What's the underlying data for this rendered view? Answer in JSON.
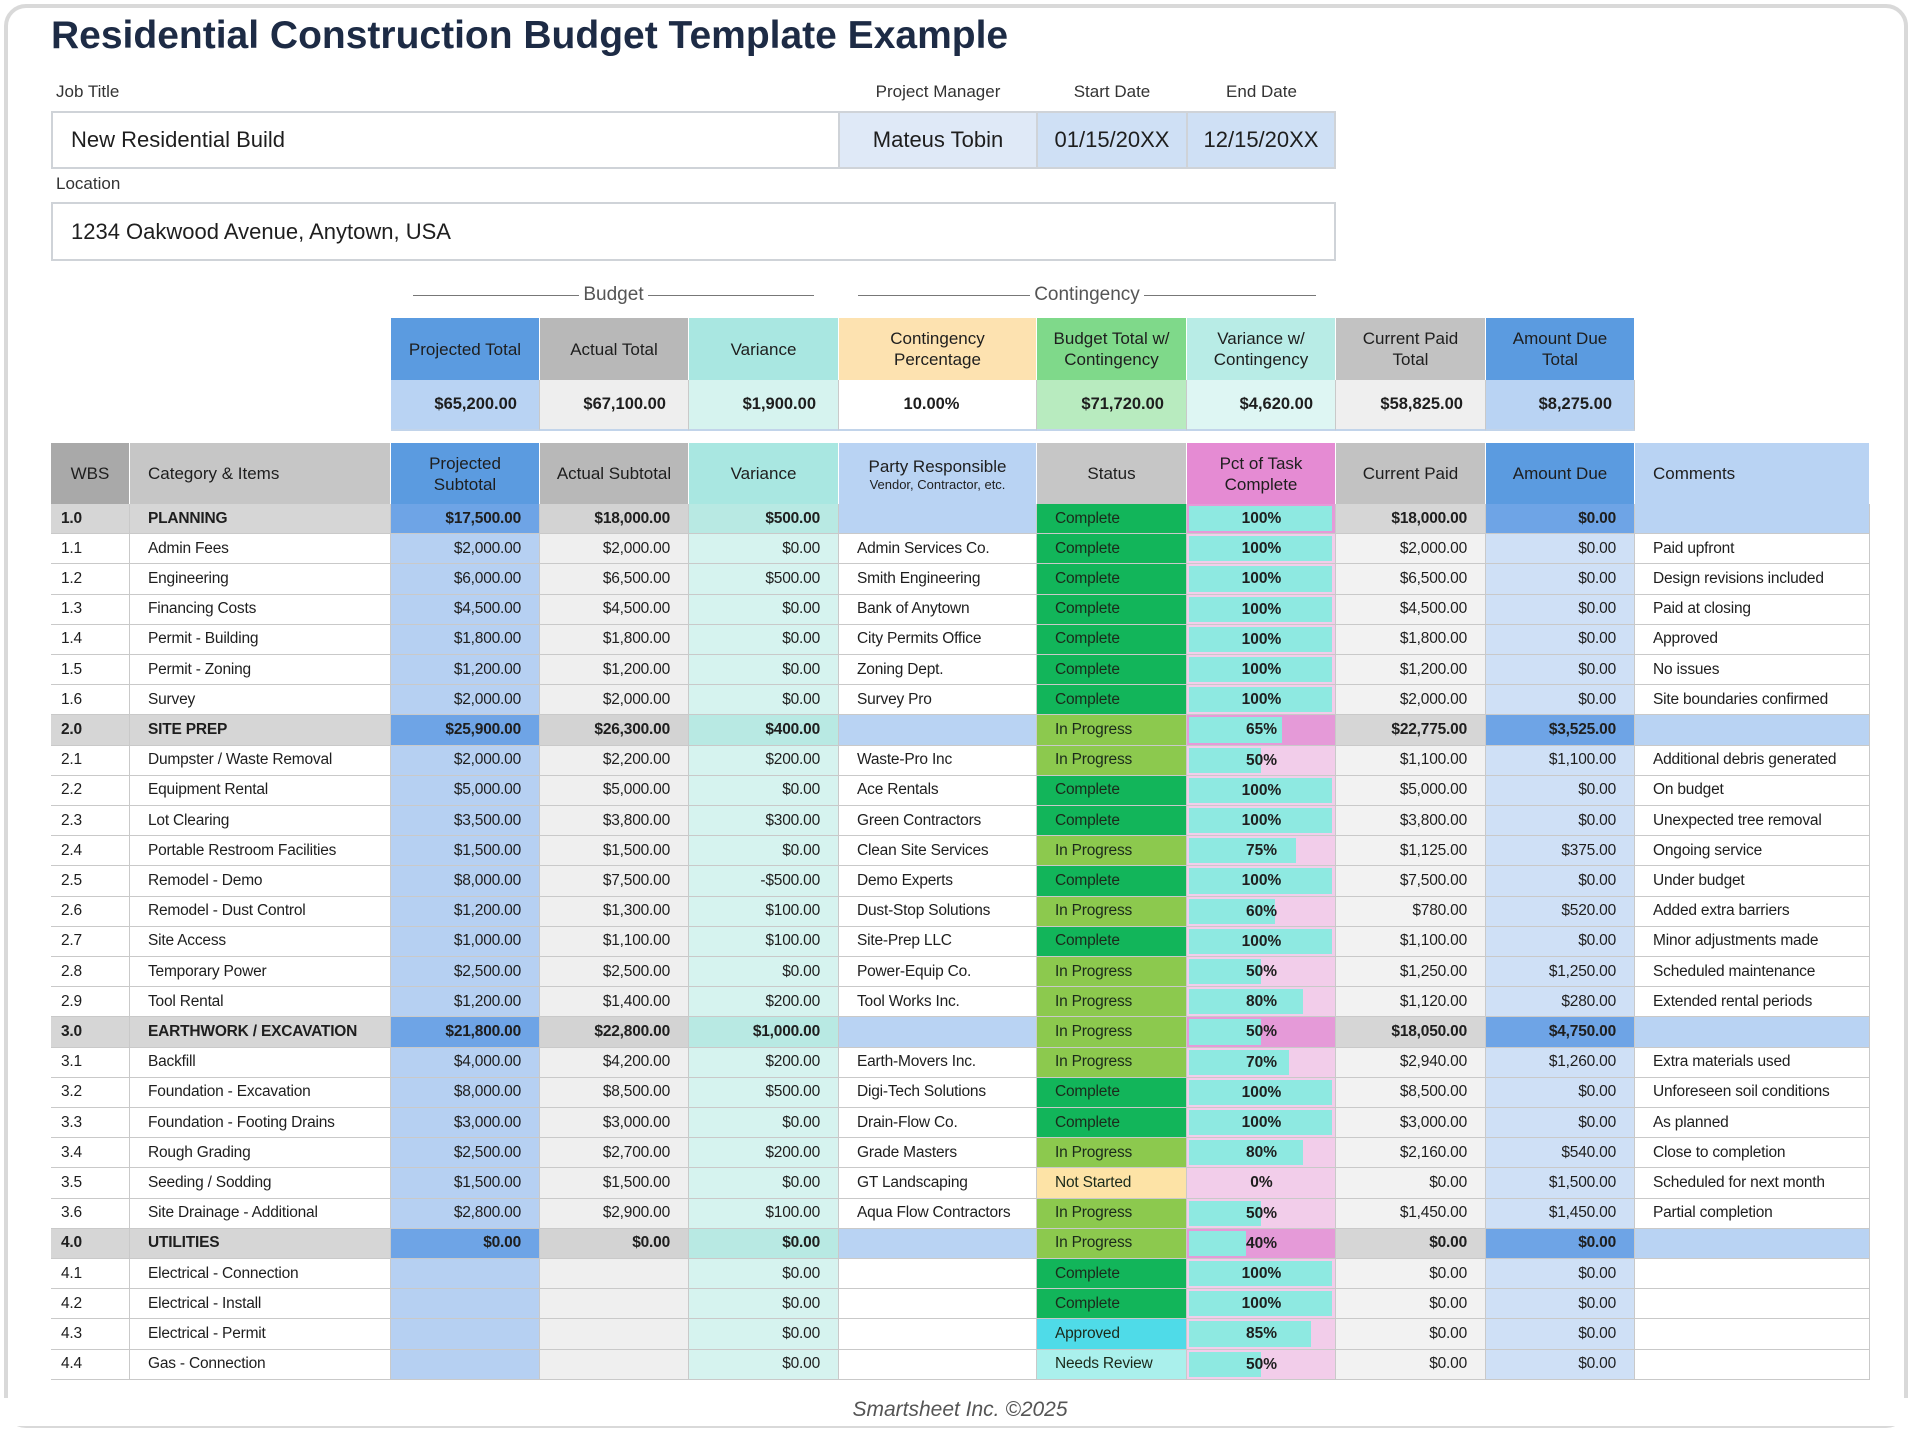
{
  "header": {
    "title": "Residential Construction Budget Template Example",
    "job_title_label": "Job Title",
    "job_title": "New Residential Build",
    "project_manager_label": "Project Manager",
    "project_manager": "Mateus Tobin",
    "start_date_label": "Start Date",
    "start_date": "01/15/20XX",
    "end_date_label": "End Date",
    "end_date": "12/15/20XX",
    "location_label": "Location",
    "location": "1234 Oakwood Avenue, Anytown, USA"
  },
  "summary": {
    "budget_label": "Budget",
    "contingency_label": "Contingency",
    "headers": [
      "Projected Total",
      "Actual Total",
      "Variance",
      "Contingency Percentage",
      "Budget Total w/ Contingency",
      "Variance w/ Contingency",
      "Current Paid Total",
      "Amount Due Total"
    ],
    "values": [
      "$65,200.00",
      "$67,100.00",
      "$1,900.00",
      "10.00%",
      "$71,720.00",
      "$4,620.00",
      "$58,825.00",
      "$8,275.00"
    ]
  },
  "table": {
    "headers": [
      "WBS",
      "Category & Items",
      "Projected Subtotal",
      "Actual Subtotal",
      "Variance",
      "Party Responsible",
      "Status",
      "Pct of Task Complete",
      "Current Paid",
      "Amount Due",
      "Comments"
    ],
    "party_note": "Vendor, Contractor, etc.",
    "status_colors": {
      "Complete": "#12b55a",
      "In Progress": "#8cc94e",
      "Not Started": "#fde3a6",
      "Approved": "#4fdbe8",
      "Needs Review": "#aaf0ec"
    },
    "rows": [
      [
        "1.0",
        "PLANNING",
        "$17,500.00",
        "$18,000.00",
        "$500.00",
        null,
        "Complete",
        "100%",
        "$18,000.00",
        "$0.00",
        null
      ],
      [
        "1.1",
        "Admin Fees",
        "$2,000.00",
        "$2,000.00",
        "$0.00",
        "Admin Services Co.",
        "Complete",
        "100%",
        "$2,000.00",
        "$0.00",
        "Paid upfront"
      ],
      [
        "1.2",
        "Engineering",
        "$6,000.00",
        "$6,500.00",
        "$500.00",
        "Smith Engineering",
        "Complete",
        "100%",
        "$6,500.00",
        "$0.00",
        "Design revisions included"
      ],
      [
        "1.3",
        "Financing Costs",
        "$4,500.00",
        "$4,500.00",
        "$0.00",
        "Bank of Anytown",
        "Complete",
        "100%",
        "$4,500.00",
        "$0.00",
        "Paid at closing"
      ],
      [
        "1.4",
        "Permit - Building",
        "$1,800.00",
        "$1,800.00",
        "$0.00",
        "City Permits Office",
        "Complete",
        "100%",
        "$1,800.00",
        "$0.00",
        "Approved"
      ],
      [
        "1.5",
        "Permit - Zoning",
        "$1,200.00",
        "$1,200.00",
        "$0.00",
        "Zoning Dept.",
        "Complete",
        "100%",
        "$1,200.00",
        "$0.00",
        "No issues"
      ],
      [
        "1.6",
        "Survey",
        "$2,000.00",
        "$2,000.00",
        "$0.00",
        "Survey Pro",
        "Complete",
        "100%",
        "$2,000.00",
        "$0.00",
        "Site boundaries confirmed"
      ],
      [
        "2.0",
        "SITE PREP",
        "$25,900.00",
        "$26,300.00",
        "$400.00",
        null,
        "In Progress",
        "65%",
        "$22,775.00",
        "$3,525.00",
        null
      ],
      [
        "2.1",
        "Dumpster / Waste Removal",
        "$2,000.00",
        "$2,200.00",
        "$200.00",
        "Waste-Pro Inc",
        "In Progress",
        "50%",
        "$1,100.00",
        "$1,100.00",
        "Additional debris generated"
      ],
      [
        "2.2",
        "Equipment Rental",
        "$5,000.00",
        "$5,000.00",
        "$0.00",
        "Ace Rentals",
        "Complete",
        "100%",
        "$5,000.00",
        "$0.00",
        "On budget"
      ],
      [
        "2.3",
        "Lot Clearing",
        "$3,500.00",
        "$3,800.00",
        "$300.00",
        "Green Contractors",
        "Complete",
        "100%",
        "$3,800.00",
        "$0.00",
        "Unexpected tree removal"
      ],
      [
        "2.4",
        "Portable Restroom Facilities",
        "$1,500.00",
        "$1,500.00",
        "$0.00",
        "Clean Site Services",
        "In Progress",
        "75%",
        "$1,125.00",
        "$375.00",
        "Ongoing service"
      ],
      [
        "2.5",
        "Remodel - Demo",
        "$8,000.00",
        "$7,500.00",
        "-$500.00",
        "Demo Experts",
        "Complete",
        "100%",
        "$7,500.00",
        "$0.00",
        "Under budget"
      ],
      [
        "2.6",
        "Remodel - Dust Control",
        "$1,200.00",
        "$1,300.00",
        "$100.00",
        "Dust-Stop Solutions",
        "In Progress",
        "60%",
        "$780.00",
        "$520.00",
        "Added extra barriers"
      ],
      [
        "2.7",
        "Site Access",
        "$1,000.00",
        "$1,100.00",
        "$100.00",
        "Site-Prep LLC",
        "Complete",
        "100%",
        "$1,100.00",
        "$0.00",
        "Minor adjustments made"
      ],
      [
        "2.8",
        "Temporary Power",
        "$2,500.00",
        "$2,500.00",
        "$0.00",
        "Power-Equip Co.",
        "In Progress",
        "50%",
        "$1,250.00",
        "$1,250.00",
        "Scheduled maintenance"
      ],
      [
        "2.9",
        "Tool Rental",
        "$1,200.00",
        "$1,400.00",
        "$200.00",
        "Tool Works Inc.",
        "In Progress",
        "80%",
        "$1,120.00",
        "$280.00",
        "Extended rental periods"
      ],
      [
        "3.0",
        "EARTHWORK / EXCAVATION",
        "$21,800.00",
        "$22,800.00",
        "$1,000.00",
        null,
        "In Progress",
        "50%",
        "$18,050.00",
        "$4,750.00",
        null
      ],
      [
        "3.1",
        "Backfill",
        "$4,000.00",
        "$4,200.00",
        "$200.00",
        "Earth-Movers Inc.",
        "In Progress",
        "70%",
        "$2,940.00",
        "$1,260.00",
        "Extra materials used"
      ],
      [
        "3.2",
        "Foundation - Excavation",
        "$8,000.00",
        "$8,500.00",
        "$500.00",
        "Digi-Tech Solutions",
        "Complete",
        "100%",
        "$8,500.00",
        "$0.00",
        "Unforeseen soil conditions"
      ],
      [
        "3.3",
        "Foundation - Footing Drains",
        "$3,000.00",
        "$3,000.00",
        "$0.00",
        "Drain-Flow Co.",
        "Complete",
        "100%",
        "$3,000.00",
        "$0.00",
        "As planned"
      ],
      [
        "3.4",
        "Rough Grading",
        "$2,500.00",
        "$2,700.00",
        "$200.00",
        "Grade Masters",
        "In Progress",
        "80%",
        "$2,160.00",
        "$540.00",
        "Close to completion"
      ],
      [
        "3.5",
        "Seeding / Sodding",
        "$1,500.00",
        "$1,500.00",
        "$0.00",
        "GT Landscaping",
        "Not Started",
        "0%",
        "$0.00",
        "$1,500.00",
        "Scheduled for next month"
      ],
      [
        "3.6",
        "Site Drainage - Additional",
        "$2,800.00",
        "$2,900.00",
        "$100.00",
        "Aqua Flow Contractors",
        "In Progress",
        "50%",
        "$1,450.00",
        "$1,450.00",
        "Partial completion"
      ],
      [
        "4.0",
        "UTILITIES",
        "$0.00",
        "$0.00",
        "$0.00",
        null,
        "In Progress",
        "40%",
        "$0.00",
        "$0.00",
        null
      ],
      [
        "4.1",
        "Electrical - Connection",
        null,
        null,
        "$0.00",
        null,
        "Complete",
        "100%",
        "$0.00",
        "$0.00",
        null
      ],
      [
        "4.2",
        "Electrical - Install",
        null,
        null,
        "$0.00",
        null,
        "Complete",
        "100%",
        "$0.00",
        "$0.00",
        null
      ],
      [
        "4.3",
        "Electrical - Permit",
        null,
        null,
        "$0.00",
        null,
        "Approved",
        "85%",
        "$0.00",
        "$0.00",
        null
      ],
      [
        "4.4",
        "Gas - Connection",
        null,
        null,
        "$0.00",
        null,
        "Needs Review",
        "50%",
        "$0.00",
        "$0.00",
        null
      ]
    ]
  },
  "footer": "Smartsheet Inc. ©2025"
}
